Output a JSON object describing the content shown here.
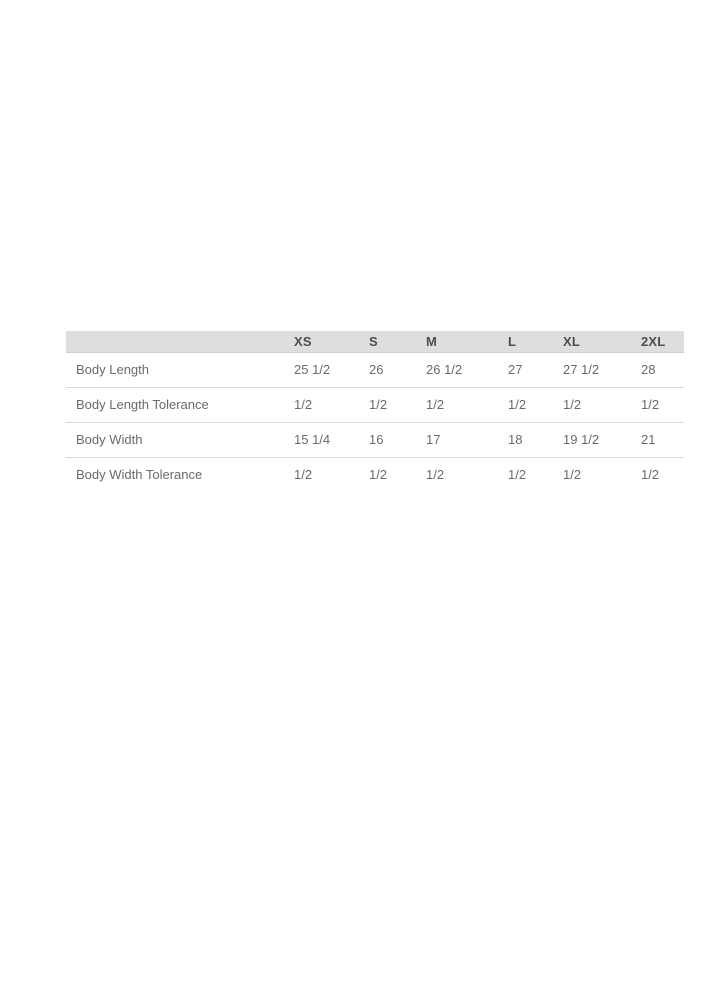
{
  "page": {
    "background": "#ffffff"
  },
  "colors": {
    "header_bg": "#dedede",
    "header_text": "#4d4d4d",
    "body_text": "#6a6a6a",
    "divider": "#d9d9d9",
    "header_border": "#cfcfcf"
  },
  "size_chart": {
    "columns": [
      "",
      "XS",
      "S",
      "M",
      "L",
      "XL",
      "2XL"
    ],
    "rows": [
      {
        "label": "Body Length",
        "values": [
          "25 1/2",
          "26",
          "26 1/2",
          "27",
          "27 1/2",
          "28"
        ]
      },
      {
        "label": "Body Length Tolerance",
        "values": [
          "1/2",
          "1/2",
          "1/2",
          "1/2",
          "1/2",
          "1/2"
        ]
      },
      {
        "label": "Body Width",
        "values": [
          "15 1/4",
          "16",
          "17",
          "18",
          "19 1/2",
          "21"
        ]
      },
      {
        "label": "Body Width Tolerance",
        "values": [
          "1/2",
          "1/2",
          "1/2",
          "1/2",
          "1/2",
          "1/2"
        ]
      }
    ]
  },
  "chart_data": {
    "type": "table",
    "columns": [
      "",
      "XS",
      "S",
      "M",
      "L",
      "XL",
      "2XL"
    ],
    "rows": [
      [
        "Body Length",
        "25 1/2",
        "26",
        "26 1/2",
        "27",
        "27 1/2",
        "28"
      ],
      [
        "Body Length Tolerance",
        "1/2",
        "1/2",
        "1/2",
        "1/2",
        "1/2",
        "1/2"
      ],
      [
        "Body Width",
        "15 1/4",
        "16",
        "17",
        "18",
        "19 1/2",
        "21"
      ],
      [
        "Body Width Tolerance",
        "1/2",
        "1/2",
        "1/2",
        "1/2",
        "1/2",
        "1/2"
      ]
    ]
  }
}
